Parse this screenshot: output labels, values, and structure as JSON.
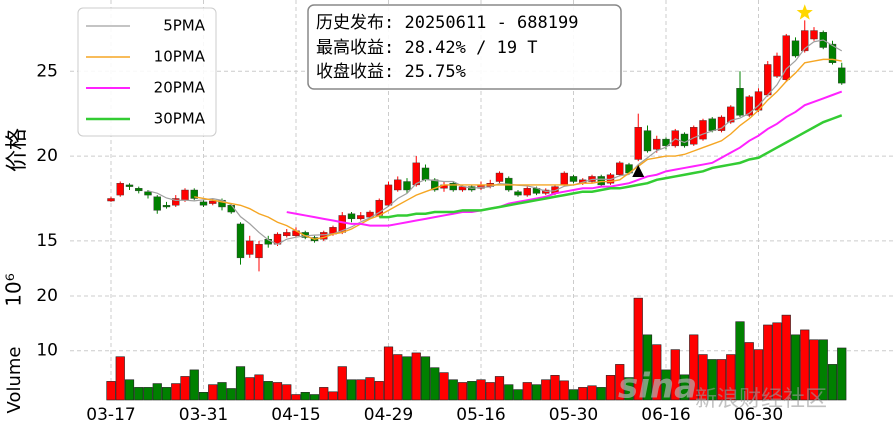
{
  "chart_data": {
    "type": "candlestick",
    "categories": [
      "03-17",
      null,
      null,
      null,
      null,
      null,
      null,
      null,
      null,
      null,
      "03-31",
      null,
      null,
      null,
      null,
      null,
      null,
      null,
      null,
      null,
      "04-15",
      null,
      null,
      null,
      null,
      null,
      null,
      null,
      null,
      null,
      "04-29",
      null,
      null,
      null,
      null,
      null,
      null,
      null,
      null,
      null,
      "05-16",
      null,
      null,
      null,
      null,
      null,
      null,
      null,
      null,
      null,
      "05-30",
      null,
      null,
      null,
      null,
      null,
      null,
      null,
      null,
      null,
      "06-16",
      null,
      null,
      null,
      null,
      null,
      null,
      null,
      null,
      null,
      "06-30",
      null,
      null,
      null,
      null,
      null,
      null,
      null,
      null,
      null
    ],
    "open": [
      17.35,
      17.7,
      18.3,
      18.1,
      17.9,
      17.6,
      17.1,
      17.1,
      17.4,
      18.0,
      17.3,
      17.2,
      17.4,
      17.1,
      16.0,
      14.2,
      14.0,
      15.1,
      14.8,
      15.3,
      15.3,
      15.5,
      15.2,
      15.1,
      15.4,
      15.5,
      16.6,
      16.3,
      16.4,
      16.5,
      17.1,
      18.0,
      18.5,
      18.3,
      19.3,
      18.6,
      18.1,
      18.4,
      18.0,
      18.2,
      18.1,
      18.2,
      18.5,
      18.7,
      17.9,
      17.7,
      18.1,
      17.8,
      17.8,
      18.3,
      18.8,
      18.4,
      18.5,
      18.8,
      18.4,
      18.9,
      19.5,
      19.8,
      21.5,
      20.4,
      21.0,
      20.6,
      21.3,
      20.7,
      21.0,
      22.2,
      21.5,
      22.0,
      24.0,
      22.4,
      22.7,
      23.6,
      24.7,
      24.5,
      26.8,
      26.2,
      26.9,
      27.3,
      26.6,
      25.2
    ],
    "close": [
      17.5,
      18.4,
      18.2,
      17.95,
      17.7,
      16.8,
      17.0,
      17.5,
      18.0,
      17.5,
      17.1,
      17.35,
      17.0,
      16.7,
      14.0,
      15.0,
      14.8,
      14.8,
      15.4,
      15.5,
      15.6,
      15.2,
      15.0,
      15.5,
      15.8,
      16.5,
      16.3,
      16.5,
      16.7,
      17.4,
      18.3,
      18.6,
      18.0,
      19.6,
      18.6,
      18.0,
      18.3,
      18.0,
      18.2,
      18.0,
      18.3,
      18.4,
      19.0,
      18.0,
      17.7,
      18.1,
      17.8,
      18.0,
      18.2,
      19.0,
      18.5,
      18.6,
      18.8,
      18.3,
      18.9,
      19.6,
      19.0,
      21.7,
      20.3,
      21.0,
      20.6,
      21.5,
      20.6,
      21.7,
      22.1,
      21.5,
      22.3,
      22.9,
      22.4,
      23.5,
      23.8,
      25.4,
      25.9,
      27.1,
      25.9,
      27.4,
      27.4,
      26.4,
      25.5,
      24.3
    ],
    "high": [
      17.6,
      18.5,
      18.4,
      18.2,
      18.0,
      17.7,
      17.3,
      17.7,
      18.1,
      18.1,
      17.4,
      17.5,
      17.5,
      17.2,
      16.1,
      15.3,
      15.0,
      15.3,
      15.5,
      15.7,
      15.8,
      15.6,
      15.3,
      15.6,
      15.9,
      16.7,
      16.7,
      16.7,
      16.8,
      17.5,
      18.5,
      18.8,
      18.7,
      20.0,
      19.5,
      18.7,
      18.5,
      18.5,
      18.3,
      18.3,
      18.5,
      18.6,
      19.1,
      18.8,
      18.0,
      18.2,
      18.2,
      18.1,
      18.3,
      19.1,
      18.9,
      18.7,
      18.9,
      18.9,
      19.0,
      19.7,
      19.6,
      22.5,
      21.8,
      21.2,
      21.1,
      21.6,
      21.4,
      21.8,
      22.2,
      22.3,
      22.4,
      23.0,
      25.0,
      23.6,
      24.0,
      25.6,
      26.1,
      27.2,
      27.0,
      28.0,
      27.6,
      27.4,
      26.8,
      25.5
    ],
    "low": [
      17.3,
      17.6,
      18.0,
      17.8,
      17.5,
      16.6,
      16.9,
      17.0,
      17.3,
      17.4,
      17.0,
      17.1,
      16.8,
      16.6,
      13.6,
      14.0,
      13.2,
      14.6,
      14.7,
      15.2,
      15.2,
      15.1,
      14.9,
      15.0,
      15.3,
      15.4,
      16.1,
      16.2,
      16.3,
      16.4,
      17.0,
      17.9,
      17.8,
      18.2,
      18.5,
      17.9,
      17.9,
      17.9,
      17.9,
      17.9,
      18.0,
      18.1,
      18.4,
      17.9,
      17.6,
      17.6,
      17.7,
      17.7,
      17.7,
      18.2,
      18.4,
      18.3,
      18.4,
      18.2,
      18.3,
      18.8,
      18.9,
      19.7,
      20.2,
      20.2,
      20.4,
      20.5,
      20.5,
      20.6,
      20.9,
      21.4,
      21.4,
      21.9,
      22.3,
      22.3,
      22.6,
      23.5,
      24.6,
      24.4,
      25.8,
      26.1,
      26.8,
      26.3,
      25.4,
      24.2
    ],
    "up_color": "#ff0000",
    "down_color": "#008000",
    "ylim": [
      12.4,
      29.2
    ],
    "yticks": [
      15,
      20,
      25
    ],
    "ylabel": "价格",
    "grid": true,
    "legend": "upper left",
    "series": [
      {
        "name": "5PMA",
        "color": "#a0a0a0",
        "width": 1.2,
        "values": [
          null,
          null,
          null,
          null,
          17.95,
          17.81,
          17.53,
          17.39,
          17.4,
          17.36,
          17.42,
          17.49,
          17.39,
          17.13,
          16.43,
          16.01,
          15.5,
          15.06,
          14.8,
          15.1,
          15.22,
          15.3,
          15.34,
          15.36,
          15.42,
          15.6,
          15.82,
          16.12,
          16.36,
          16.68,
          17.04,
          17.5,
          17.8,
          18.38,
          18.62,
          18.56,
          18.5,
          18.5,
          18.22,
          18.1,
          18.16,
          18.18,
          18.38,
          18.34,
          18.28,
          18.24,
          18.12,
          17.92,
          17.96,
          18.22,
          18.3,
          18.46,
          18.62,
          18.64,
          18.62,
          18.84,
          18.92,
          19.5,
          19.9,
          20.32,
          20.52,
          21.02,
          20.8,
          21.08,
          21.3,
          21.48,
          21.64,
          22.1,
          22.24,
          22.52,
          22.98,
          23.6,
          24.2,
          25.14,
          25.62,
          26.34,
          26.74,
          26.84,
          26.52,
          26.2
        ]
      },
      {
        "name": "10PMA",
        "color": "#f5a623",
        "width": 1.4,
        "values": [
          null,
          null,
          null,
          null,
          null,
          null,
          null,
          null,
          null,
          17.6,
          17.5,
          17.4,
          17.3,
          17.2,
          17.1,
          16.9,
          16.6,
          16.4,
          16.1,
          15.9,
          15.6,
          15.3,
          15.1,
          15.2,
          15.4,
          15.5,
          15.7,
          16.0,
          16.3,
          16.5,
          16.8,
          17.1,
          17.4,
          17.7,
          17.9,
          18.1,
          18.3,
          18.3,
          18.3,
          18.3,
          18.3,
          18.3,
          18.3,
          18.3,
          18.3,
          18.3,
          18.3,
          18.3,
          18.3,
          18.3,
          18.3,
          18.4,
          18.4,
          18.5,
          18.5,
          18.6,
          19.0,
          19.4,
          19.8,
          19.9,
          20.0,
          20.0,
          20.1,
          20.3,
          20.5,
          20.7,
          20.9,
          21.3,
          21.8,
          22.2,
          22.7,
          23.3,
          23.8,
          24.4,
          24.9,
          25.5,
          25.6,
          25.7,
          25.7,
          25.6
        ]
      },
      {
        "name": "20PMA",
        "color": "#ff22ff",
        "width": 2,
        "values": [
          null,
          null,
          null,
          null,
          null,
          null,
          null,
          null,
          null,
          null,
          null,
          null,
          null,
          null,
          null,
          null,
          null,
          null,
          null,
          16.7,
          16.6,
          16.5,
          16.4,
          16.3,
          16.2,
          16.1,
          16.0,
          16.0,
          15.9,
          15.9,
          15.9,
          16.0,
          16.1,
          16.2,
          16.3,
          16.4,
          16.5,
          16.6,
          16.7,
          16.7,
          16.8,
          16.9,
          17.0,
          17.2,
          17.3,
          17.4,
          17.5,
          17.6,
          17.8,
          17.9,
          18.0,
          18.1,
          18.1,
          18.2,
          18.2,
          18.3,
          18.4,
          18.6,
          18.8,
          18.9,
          19.1,
          19.2,
          19.3,
          19.4,
          19.5,
          19.6,
          19.9,
          20.2,
          20.5,
          20.9,
          21.2,
          21.6,
          21.9,
          22.3,
          22.6,
          23.0,
          23.2,
          23.4,
          23.6,
          23.8
        ]
      },
      {
        "name": "30PMA",
        "color": "#33cc33",
        "width": 2.5,
        "values": [
          null,
          null,
          null,
          null,
          null,
          null,
          null,
          null,
          null,
          null,
          null,
          null,
          null,
          null,
          null,
          null,
          null,
          null,
          null,
          null,
          null,
          null,
          null,
          null,
          null,
          null,
          null,
          null,
          null,
          16.4,
          16.4,
          16.5,
          16.5,
          16.6,
          16.6,
          16.7,
          16.7,
          16.7,
          16.8,
          16.8,
          16.8,
          16.9,
          17.0,
          17.1,
          17.2,
          17.3,
          17.4,
          17.5,
          17.6,
          17.7,
          17.8,
          17.9,
          17.9,
          18.0,
          18.1,
          18.1,
          18.2,
          18.3,
          18.4,
          18.6,
          18.7,
          18.8,
          18.9,
          19.0,
          19.1,
          19.3,
          19.4,
          19.5,
          19.6,
          19.8,
          19.9,
          20.2,
          20.5,
          20.8,
          21.1,
          21.4,
          21.7,
          22.0,
          22.2,
          22.4
        ]
      }
    ],
    "volume": {
      "values": [
        4.4,
        8.9,
        4.7,
        3.3,
        3.3,
        4.0,
        3.3,
        4.0,
        5.3,
        6.5,
        2.4,
        3.8,
        4.2,
        3.1,
        7.1,
        5.1,
        5.6,
        4.4,
        4.2,
        3.8,
        2.0,
        2.4,
        2.0,
        3.3,
        2.5,
        7.1,
        4.7,
        4.7,
        5.1,
        4.4,
        10.7,
        9.3,
        8.9,
        9.6,
        8.9,
        6.9,
        6.0,
        4.7,
        4.2,
        4.4,
        4.7,
        4.2,
        5.3,
        3.8,
        2.9,
        4.2,
        3.8,
        4.7,
        5.5,
        4.5,
        2.9,
        3.3,
        3.6,
        3.3,
        5.5,
        7.5,
        5.1,
        19.6,
        12.9,
        11.1,
        6.5,
        10.2,
        5.6,
        12.9,
        9.3,
        8.4,
        8.4,
        9.3,
        15.3,
        11.5,
        10.2,
        14.7,
        15.1,
        16.5,
        12.9,
        13.8,
        12.0,
        12.0,
        7.5,
        10.5
      ],
      "ylim": [
        1,
        22
      ],
      "yticks": [
        10,
        20
      ],
      "ylabel": "Volume",
      "offset_label": "10⁶"
    },
    "release_marker": {
      "x": 57,
      "y": 19.0,
      "color": "#000000"
    },
    "max_marker": {
      "x": 75,
      "y": 28.45,
      "color": "#ffd700"
    },
    "info_box": [
      "历史发布: 20250611 - 688199",
      "最高收益: 28.42% / 19 T",
      "收盘收益: 25.75%"
    ],
    "watermark_logo": "sina",
    "watermark": "新浪财经社区"
  }
}
